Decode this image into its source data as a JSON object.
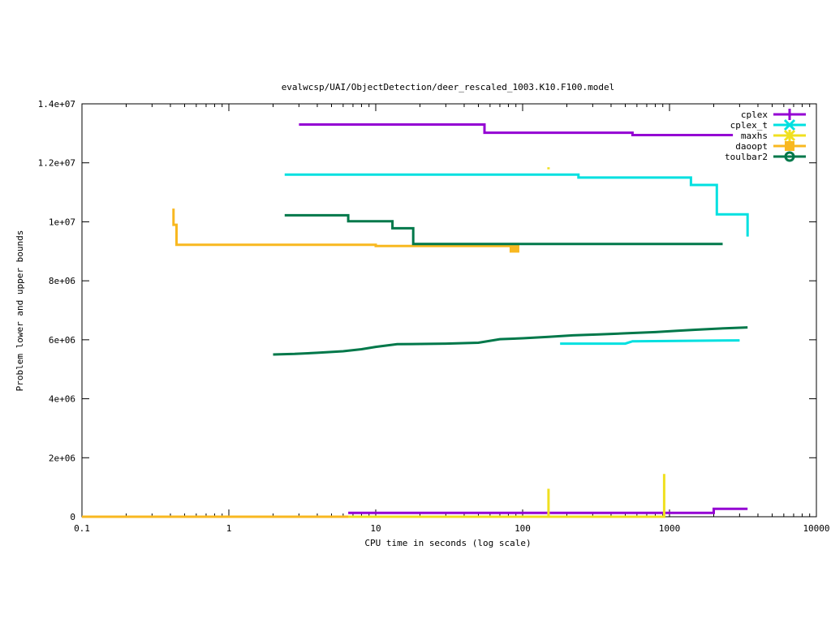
{
  "chart_data": {
    "type": "line",
    "title": "evalwcsp/UAI/ObjectDetection/deer_rescaled_1003.K10.F100.model",
    "xlabel": "CPU time in seconds (log scale)",
    "ylabel": "Problem lower and upper bounds",
    "xscale": "log",
    "xlim": [
      0.1,
      10000
    ],
    "ylim": [
      0,
      14000000
    ],
    "x_ticks": [
      {
        "value": 0.1,
        "label": "0.1"
      },
      {
        "value": 1,
        "label": "1"
      },
      {
        "value": 10,
        "label": "10"
      },
      {
        "value": 100,
        "label": "100"
      },
      {
        "value": 1000,
        "label": "1000"
      },
      {
        "value": 10000,
        "label": "10000"
      }
    ],
    "y_ticks": [
      {
        "value": 0,
        "label": "0"
      },
      {
        "value": 2000000,
        "label": "2e+06"
      },
      {
        "value": 4000000,
        "label": "4e+06"
      },
      {
        "value": 6000000,
        "label": "6e+06"
      },
      {
        "value": 8000000,
        "label": "8e+06"
      },
      {
        "value": 10000000,
        "label": "1e+07"
      },
      {
        "value": 12000000,
        "label": "1.2e+07"
      },
      {
        "value": 14000000,
        "label": "1.4e+07"
      }
    ],
    "grid": false,
    "legend_position": "top-right",
    "series": [
      {
        "name": "cplex",
        "color": "#9400d3",
        "marker": "plus",
        "lines": [
          [
            [
              3.0,
              13300000
            ],
            [
              55,
              13300000
            ],
            [
              55,
              13020000
            ],
            [
              560,
              13020000
            ],
            [
              560,
              12940000
            ],
            [
              2700,
              12940000
            ]
          ],
          [
            [
              6.5,
              130000
            ],
            [
              2000,
              130000
            ],
            [
              2000,
              270000
            ],
            [
              3400,
              270000
            ]
          ]
        ]
      },
      {
        "name": "cplex_t",
        "color": "#00e0e0",
        "marker": "cross",
        "lines": [
          [
            [
              2.4,
              11600000
            ],
            [
              240,
              11600000
            ],
            [
              240,
              11500000
            ],
            [
              1400,
              11500000
            ],
            [
              1400,
              11250000
            ],
            [
              2100,
              11250000
            ],
            [
              2100,
              10250000
            ],
            [
              3400,
              10250000
            ],
            [
              3400,
              9500000
            ]
          ],
          [
            [
              180,
              5870000
            ],
            [
              500,
              5870000
            ],
            [
              560,
              5950000
            ],
            [
              3000,
              5980000
            ]
          ]
        ]
      },
      {
        "name": "maxhs",
        "color": "#f0e020",
        "marker": "star",
        "lines": [
          [
            [
              0.1,
              0
            ],
            [
              150,
              0
            ],
            [
              150,
              950000
            ],
            [
              150,
              0
            ],
            [
              920,
              0
            ],
            [
              920,
              1450000
            ],
            [
              920,
              0
            ]
          ],
          [
            [
              150,
              11850000
            ],
            [
              150,
              11780000
            ]
          ]
        ]
      },
      {
        "name": "daoopt",
        "color": "#f8b820",
        "marker": "square",
        "lines": [
          [
            [
              0.42,
              10450000
            ],
            [
              0.42,
              9900000
            ],
            [
              0.44,
              9900000
            ],
            [
              0.44,
              9220000
            ],
            [
              10,
              9220000
            ],
            [
              10,
              9180000
            ],
            [
              88,
              9180000
            ]
          ],
          [
            [
              0.1,
              0
            ],
            [
              6.5,
              0
            ]
          ]
        ],
        "points": [
          [
            88,
            9120000
          ]
        ]
      },
      {
        "name": "toulbar2",
        "color": "#00784a",
        "marker": "circle",
        "lines": [
          [
            [
              2.4,
              10220000
            ],
            [
              6.5,
              10220000
            ],
            [
              6.5,
              10020000
            ],
            [
              13,
              10020000
            ],
            [
              13,
              9780000
            ],
            [
              18,
              9780000
            ],
            [
              18,
              9250000
            ],
            [
              2300,
              9250000
            ]
          ],
          [
            [
              2.0,
              5500000
            ],
            [
              2.8,
              5520000
            ],
            [
              4.0,
              5560000
            ],
            [
              6.0,
              5610000
            ],
            [
              8.0,
              5680000
            ],
            [
              10,
              5760000
            ],
            [
              14,
              5850000
            ],
            [
              30,
              5870000
            ],
            [
              50,
              5900000
            ],
            [
              70,
              6020000
            ],
            [
              100,
              6050000
            ],
            [
              150,
              6100000
            ],
            [
              220,
              6150000
            ],
            [
              330,
              6180000
            ],
            [
              500,
              6220000
            ],
            [
              800,
              6260000
            ],
            [
              1100,
              6300000
            ],
            [
              1500,
              6340000
            ],
            [
              2200,
              6380000
            ],
            [
              3400,
              6420000
            ]
          ]
        ]
      }
    ]
  }
}
